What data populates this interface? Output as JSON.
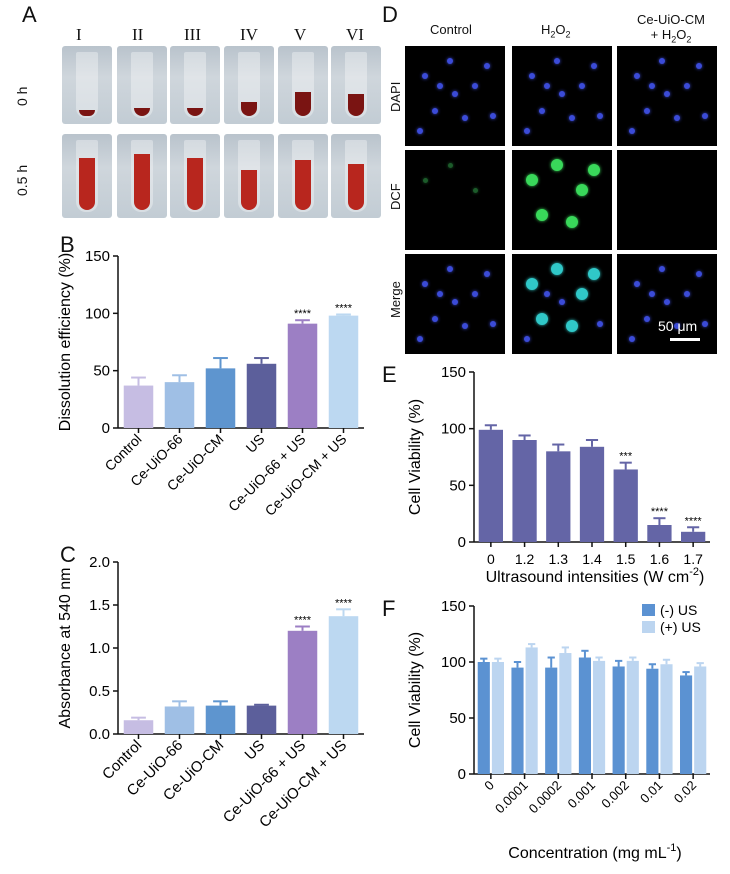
{
  "panelA": {
    "label": "A",
    "columns": [
      "I",
      "II",
      "III",
      "IV",
      "V",
      "VI"
    ],
    "rows": [
      "0 h",
      "0.5 h"
    ]
  },
  "panelB": {
    "label": "B",
    "chart_data": {
      "type": "bar",
      "ylabel": "Dissolution efficiency (%)",
      "ylim": [
        0,
        150
      ],
      "yticks": [
        0,
        50,
        100,
        150
      ],
      "categories": [
        "Control",
        "Ce-UiO-66",
        "Ce-UiO-CM",
        "US",
        "Ce-UiO-66 + US",
        "Ce-UiO-CM + US"
      ],
      "values": [
        37,
        40,
        52,
        56,
        91,
        98
      ],
      "errors": [
        7,
        6,
        9,
        5,
        3,
        1
      ],
      "colors": [
        "#c6bde3",
        "#9fbfe5",
        "#5e95cf",
        "#5c5f9b",
        "#9c7fc4",
        "#bcd8f1"
      ],
      "significance": [
        "",
        "",
        "",
        "",
        "****",
        "****"
      ]
    }
  },
  "panelC": {
    "label": "C",
    "chart_data": {
      "type": "bar",
      "ylabel": "Absorbance at 540 nm",
      "ylim": [
        0,
        2.0
      ],
      "yticks": [
        "0.0",
        "0.5",
        "1.0",
        "1.5",
        "2.0"
      ],
      "categories": [
        "Control",
        "Ce-UiO-66",
        "Ce-UiO-CM",
        "US",
        "Ce-UiO-66 + US",
        "Ce-UiO-CM + US"
      ],
      "values": [
        0.16,
        0.32,
        0.33,
        0.33,
        1.2,
        1.37
      ],
      "errors": [
        0.03,
        0.06,
        0.05,
        0.01,
        0.05,
        0.08
      ],
      "colors": [
        "#c6bde3",
        "#9fbfe5",
        "#5e95cf",
        "#5c5f9b",
        "#9c7fc4",
        "#bcd8f1"
      ],
      "significance": [
        "",
        "",
        "",
        "",
        "****",
        "****"
      ]
    }
  },
  "panelD": {
    "label": "D",
    "columns": [
      "Control",
      "H₂O₂",
      "Ce-UiO-CM\n+ H₂O₂"
    ],
    "col1": "Control",
    "col2_main": "H",
    "col3_line1": "Ce-UiO-CM",
    "col3_line2": "+ H",
    "sub2": "2",
    "o": "O",
    "rows": [
      "DAPI",
      "DCF",
      "Merge"
    ],
    "scalebar": "50 μm"
  },
  "panelE": {
    "label": "E",
    "chart_data": {
      "type": "bar",
      "ylabel": "Cell Viability (%)",
      "xlabel": "Ultrasound intensities (W cm",
      "xlabel_sup": "-2",
      "xlabel_end": ")",
      "ylim": [
        0,
        150
      ],
      "yticks": [
        0,
        50,
        100,
        150
      ],
      "categories": [
        "0",
        "1.2",
        "1.3",
        "1.4",
        "1.5",
        "1.6",
        "1.7"
      ],
      "values": [
        99,
        90,
        80,
        84,
        64,
        15,
        9
      ],
      "errors": [
        4,
        4,
        6,
        6,
        6,
        6,
        4
      ],
      "color": "#6465a6",
      "significance": [
        "",
        "",
        "",
        "",
        "***",
        "****",
        "****"
      ]
    }
  },
  "panelF": {
    "label": "F",
    "chart_data": {
      "type": "bar",
      "ylabel": "Cell Viability (%)",
      "xlabel": "Concentration (mg mL",
      "xlabel_sup": "-1",
      "xlabel_end": ")",
      "ylim": [
        0,
        150
      ],
      "yticks": [
        0,
        50,
        100,
        150
      ],
      "categories": [
        "0",
        "0.0001",
        "0.0002",
        "0.001",
        "0.002",
        "0.01",
        "0.02"
      ],
      "series": [
        {
          "name": "(-) US",
          "values": [
            100,
            95,
            95,
            104,
            96,
            94,
            88
          ],
          "errors": [
            3,
            5,
            9,
            6,
            5,
            4,
            3
          ],
          "color": "#5b92d2"
        },
        {
          "name": "(+) US",
          "values": [
            100,
            113,
            108,
            101,
            101,
            98,
            96
          ],
          "errors": [
            3,
            3,
            5,
            3,
            3,
            4,
            3
          ],
          "color": "#bcd5f0"
        }
      ],
      "legend": "top-right"
    }
  }
}
